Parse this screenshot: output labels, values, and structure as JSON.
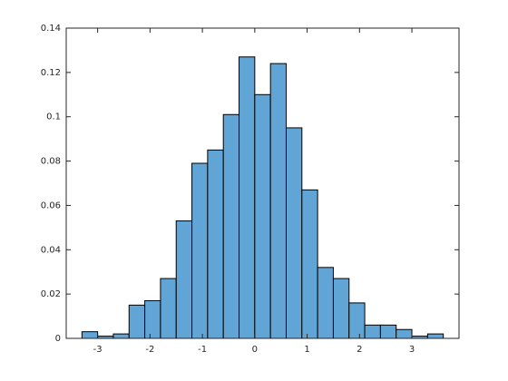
{
  "chart_data": {
    "type": "histogram",
    "bins": [
      -3.3,
      -3.0,
      -2.7,
      -2.4,
      -2.1,
      -1.8,
      -1.5,
      -1.2,
      -0.9,
      -0.6,
      -0.3,
      0,
      0.3,
      0.6,
      0.9,
      1.2,
      1.5,
      1.8,
      2.1,
      2.4,
      2.7,
      3.0,
      3.3,
      3.6
    ],
    "values": [
      0.003,
      0.001,
      0.002,
      0.015,
      0.017,
      0.027,
      0.053,
      0.079,
      0.085,
      0.101,
      0.127,
      0.11,
      0.124,
      0.095,
      0.067,
      0.032,
      0.027,
      0.016,
      0.006,
      0.006,
      0.004,
      0.001,
      0.002
    ],
    "color": "#61a5d6",
    "edgecolor": "#000000",
    "xlim": [
      -3.6,
      3.9
    ],
    "xticks": [
      -3,
      -2,
      -1,
      0,
      1,
      2,
      3
    ],
    "ylim": [
      0,
      0.14
    ],
    "yticks": [
      0,
      0.02,
      0.04,
      0.06,
      0.08,
      0.1,
      0.12,
      0.14
    ],
    "grid": false
  }
}
